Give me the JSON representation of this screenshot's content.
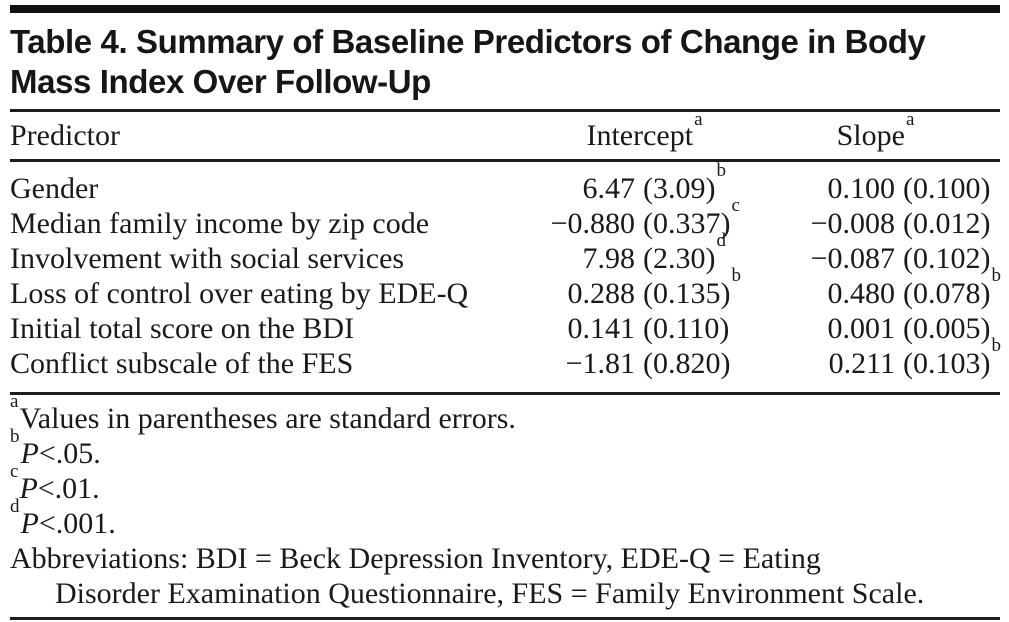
{
  "title": {
    "lines": [
      "Table 4. Summary of Baseline Predictors of Change in Body",
      "Mass Index Over Follow-Up"
    ]
  },
  "table": {
    "columns": {
      "predictor": "Predictor",
      "intercept": {
        "label": "Intercept",
        "sup": "a"
      },
      "slope": {
        "label": "Slope",
        "sup": "a"
      }
    },
    "rows": [
      {
        "predictor": "Gender",
        "intercept": {
          "est": "6.47",
          "se": "(3.09)",
          "sup": "b"
        },
        "slope": {
          "est": "0.100",
          "se": "(0.100)",
          "sup": ""
        }
      },
      {
        "predictor": "Median family income by zip code",
        "intercept": {
          "est": "−0.880",
          "se": "(0.337)",
          "sup": "c"
        },
        "slope": {
          "est": "−0.008",
          "se": "(0.012)",
          "sup": ""
        }
      },
      {
        "predictor": "Involvement with social services",
        "intercept": {
          "est": "7.98",
          "se": "(2.30)",
          "sup": "d"
        },
        "slope": {
          "est": "−0.087",
          "se": "(0.102)",
          "sup": ""
        }
      },
      {
        "predictor": "Loss of control over eating by EDE-Q",
        "intercept": {
          "est": "0.288",
          "se": "(0.135)",
          "sup": "b"
        },
        "slope": {
          "est": "0.480",
          "se": "(0.078)",
          "sup": "b"
        }
      },
      {
        "predictor": "Initial total score on the BDI",
        "intercept": {
          "est": "0.141",
          "se": "(0.110)",
          "sup": ""
        },
        "slope": {
          "est": "0.001",
          "se": "(0.005)",
          "sup": ""
        }
      },
      {
        "predictor": "Conflict subscale of the FES",
        "intercept": {
          "est": "−1.81",
          "se": "(0.820)",
          "sup": ""
        },
        "slope": {
          "est": "0.211",
          "se": "(0.103)",
          "sup": "b"
        }
      }
    ]
  },
  "footnotes": {
    "a": {
      "marker": "a",
      "text": "Values in parentheses are standard errors."
    },
    "b": {
      "marker": "b",
      "p": "P",
      "rest": "<.05."
    },
    "c": {
      "marker": "c",
      "p": "P",
      "rest": "<.01."
    },
    "d": {
      "marker": "d",
      "p": "P",
      "rest": "<.001."
    },
    "abbreviations": {
      "line1": "Abbreviations: BDI = Beck Depression Inventory, EDE-Q = Eating",
      "line2": "Disorder Examination Questionnaire, FES = Family Environment Scale."
    }
  },
  "colors": {
    "text": "#1a1a1a",
    "rule": "#1c1c1c",
    "top_bar": "#111111",
    "background": "#ffffff"
  }
}
